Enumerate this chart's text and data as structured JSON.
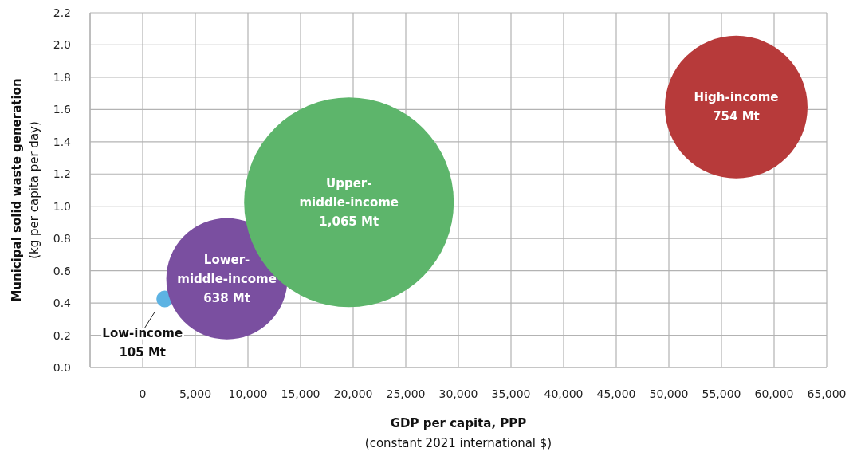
{
  "chart_data": {
    "type": "bubble",
    "xlabel": "GDP per capita, PPP\n(constant 2021 international $)",
    "ylabel": "Municipal solid waste generation\n(kg per capita per day)",
    "x": [
      2100,
      8000,
      19600,
      56400
    ],
    "values": [
      0.425,
      0.55,
      1.025,
      1.615
    ],
    "sizes": [
      0.0064,
      0.334,
      1,
      0.463
    ],
    "colors": [
      "#5db3e3",
      "#7a4fa0",
      "#5db56b",
      "#b73a3a"
    ],
    "xlim": [
      -5000,
      65000
    ],
    "xticks": [
      {
        "value": 0,
        "label": "0"
      },
      {
        "value": 5000,
        "label": "5,000"
      },
      {
        "value": 10000,
        "label": "10,000"
      },
      {
        "value": 15000,
        "label": "15,000"
      },
      {
        "value": 20000,
        "label": "20,000"
      },
      {
        "value": 25000,
        "label": "25,000"
      },
      {
        "value": 30000,
        "label": "30,000"
      },
      {
        "value": 35000,
        "label": "35,000"
      },
      {
        "value": 40000,
        "label": "40,000"
      },
      {
        "value": 45000,
        "label": "45,000"
      },
      {
        "value": 50000,
        "label": "50,000"
      },
      {
        "value": 55000,
        "label": "55,000"
      },
      {
        "value": 60000,
        "label": "60,000"
      },
      {
        "value": 65000,
        "label": "65,000"
      }
    ],
    "ylim": [
      0,
      2.2
    ],
    "yticks": [
      {
        "value": 0,
        "label": "0.0"
      },
      {
        "value": 0.2,
        "label": "0.2"
      },
      {
        "value": 0.4,
        "label": "0.4"
      },
      {
        "value": 0.6,
        "label": "0.6"
      },
      {
        "value": 0.8,
        "label": "0.8"
      },
      {
        "value": 1,
        "label": "1.0"
      },
      {
        "value": 1.2,
        "label": "1.2"
      },
      {
        "value": 1.4,
        "label": "1.4"
      },
      {
        "value": 1.6,
        "label": "1.6"
      },
      {
        "value": 1.8,
        "label": "1.8"
      },
      {
        "value": 2,
        "label": "2.0"
      },
      {
        "value": 2.2,
        "label": "2.2"
      }
    ],
    "grid": true,
    "annotations": [
      {
        "text": "Low-income\n105 Mt",
        "x": 2100,
        "y": 0.425
      },
      {
        "text": "Lower-\nmiddle-income\n638 Mt",
        "x": 8000,
        "y": 0.55
      },
      {
        "text": "Upper-\nmiddle-income\n1,065 Mt",
        "x": 19600,
        "y": 1.025
      },
      {
        "text": "High-income\n754 Mt",
        "x": 56400,
        "y": 1.615
      }
    ]
  }
}
